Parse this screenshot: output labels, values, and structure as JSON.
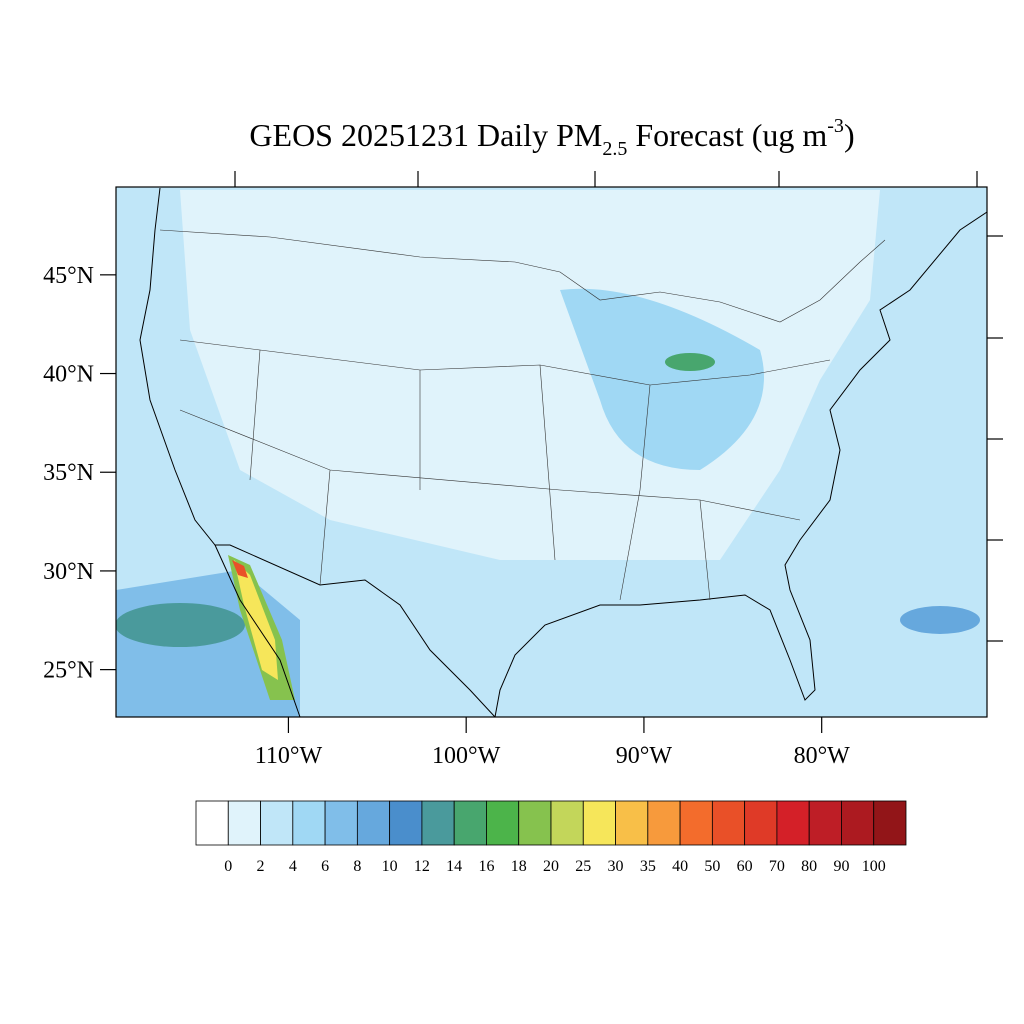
{
  "title_parts": {
    "main": "GEOS 20251231 Daily PM",
    "sub": "2.5",
    "middle": " Forecast (ug m",
    "sup": "-3",
    "end": ")"
  },
  "map": {
    "xlim": [
      -119.7,
      -70.7
    ],
    "ylim": [
      22.6,
      49.45
    ],
    "lat_ticks": [
      {
        "value": 45,
        "label": "45°N"
      },
      {
        "value": 40,
        "label": "40°N"
      },
      {
        "value": 35,
        "label": "35°N"
      },
      {
        "value": 30,
        "label": "30°N"
      },
      {
        "value": 25,
        "label": "25°N"
      }
    ],
    "lon_ticks": [
      {
        "value": -110,
        "label": "110°W"
      },
      {
        "value": -100,
        "label": "100°W"
      },
      {
        "value": -90,
        "label": "90°W"
      },
      {
        "value": -80,
        "label": "80°W"
      }
    ]
  },
  "colorbar": {
    "levels": [
      0,
      2,
      4,
      6,
      8,
      10,
      12,
      14,
      16,
      18,
      20,
      25,
      30,
      35,
      40,
      50,
      60,
      70,
      80,
      90,
      100
    ],
    "colors": [
      "#ffffff",
      "#e0f3fb",
      "#c0e6f8",
      "#a0d8f4",
      "#80bee9",
      "#66a8dd",
      "#4a8ecc",
      "#4a9a9c",
      "#48a66e",
      "#4cb44a",
      "#86c24e",
      "#c3d65a",
      "#f6e65a",
      "#f8bf48",
      "#f79a3c",
      "#f36c2c",
      "#e95028",
      "#df3a27",
      "#d42028",
      "#be1e26",
      "#ac1a20",
      "#921518"
    ]
  }
}
